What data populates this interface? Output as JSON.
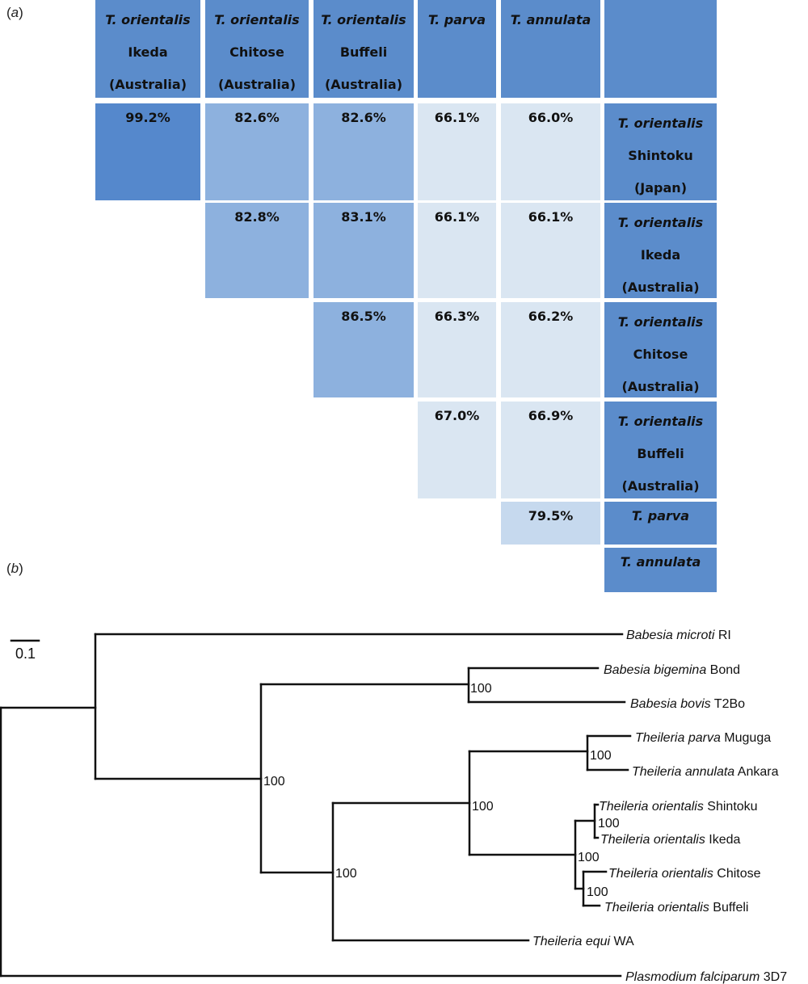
{
  "panel_a": {
    "label_prefix": "(",
    "label_letter": "a",
    "label_suffix": ")",
    "headers": [
      {
        "species": "T. orientalis",
        "strain": "Ikeda",
        "origin": "(Australia)"
      },
      {
        "species": "T. orientalis",
        "strain": "Chitose",
        "origin": "(Australia)"
      },
      {
        "species": "T. orientalis",
        "strain": "Buffeli",
        "origin": "(Australia)"
      },
      {
        "species": "T. parva",
        "strain": "",
        "origin": ""
      },
      {
        "species": "T. annulata",
        "strain": "",
        "origin": ""
      },
      {
        "species": "",
        "strain": "",
        "origin": ""
      }
    ],
    "row_labels": [
      {
        "species": "T. orientalis",
        "strain": "Shintoku",
        "origin": "(Japan)"
      },
      {
        "species": "T. orientalis",
        "strain": "Ikeda",
        "origin": "(Australia)"
      },
      {
        "species": "T. orientalis",
        "strain": "Chitose",
        "origin": "(Australia)"
      },
      {
        "species": "T. orientalis",
        "strain": "Buffeli",
        "origin": "(Australia)"
      },
      {
        "species": "T. parva",
        "strain": "",
        "origin": ""
      },
      {
        "species": "T. annulata",
        "strain": "",
        "origin": ""
      }
    ],
    "matrix": [
      [
        "99.2%",
        "82.6%",
        "82.6%",
        "66.1%",
        "66.0%"
      ],
      [
        "",
        "82.8%",
        "83.1%",
        "66.1%",
        "66.1%"
      ],
      [
        "",
        "",
        "86.5%",
        "66.3%",
        "66.2%"
      ],
      [
        "",
        "",
        "",
        "67.0%",
        "66.9%"
      ],
      [
        "",
        "",
        "",
        "",
        "79.5%"
      ]
    ],
    "colors": {
      "header": "#5b8ccb",
      "high": "#5588cc",
      "mid": "#8db1de",
      "low": "#dae6f2",
      "pale": "#c6d9ee"
    }
  },
  "panel_b": {
    "label_prefix": "(",
    "label_letter": "b",
    "label_suffix": ")",
    "scale_bar": "0.1",
    "leaves": [
      {
        "genus": "Babesia",
        "species": "microti",
        "strain": "RI"
      },
      {
        "genus": "Babesia",
        "species": "bigemina",
        "strain": "Bond"
      },
      {
        "genus": "Babesia",
        "species": "bovis",
        "strain": "T2Bo"
      },
      {
        "genus": "Theileria",
        "species": "parva",
        "strain": "Muguga"
      },
      {
        "genus": "Theileria",
        "species": "annulata",
        "strain": "Ankara"
      },
      {
        "genus": "Theileria",
        "species": "orientalis",
        "strain": "Shintoku"
      },
      {
        "genus": "Theileria",
        "species": "orientalis",
        "strain": "Ikeda"
      },
      {
        "genus": "Theileria",
        "species": "orientalis",
        "strain": "Chitose"
      },
      {
        "genus": "Theileria",
        "species": "orientalis",
        "strain": "Buffeli"
      },
      {
        "genus": "Theileria",
        "species": "equi",
        "strain": "WA"
      },
      {
        "genus": "Plasmodium",
        "species": "falciparum",
        "strain": "3D7"
      }
    ],
    "bootstrap": [
      "100",
      "100",
      "100",
      "100",
      "100",
      "100",
      "100"
    ]
  }
}
